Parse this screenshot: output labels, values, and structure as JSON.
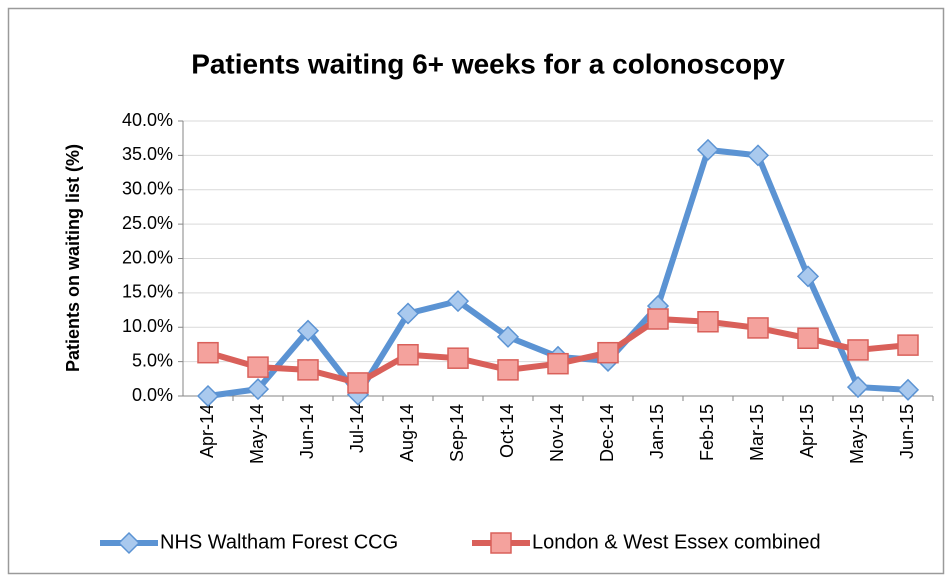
{
  "chart_data": {
    "type": "line",
    "title": "Patients waiting 6+ weeks for a colonoscopy",
    "y_label": "Patients on waiting list (%)",
    "categories": [
      "Apr-14",
      "May-14",
      "Jun-14",
      "Jul-14",
      "Aug-14",
      "Sep-14",
      "Oct-14",
      "Nov-14",
      "Dec-14",
      "Jan-15",
      "Feb-15",
      "Mar-15",
      "Apr-15",
      "May-15",
      "Jun-15"
    ],
    "series": [
      {
        "name": "NHS Waltham Forest CCG",
        "color": "#5b93d3",
        "marker": "diamond",
        "values": [
          0.0,
          1.0,
          9.5,
          0.2,
          12.0,
          13.8,
          8.6,
          5.7,
          5.1,
          13.1,
          35.8,
          35.0,
          17.4,
          1.3,
          0.9
        ]
      },
      {
        "name": "London & West Essex combined",
        "color": "#d9605a",
        "marker": "square",
        "values": [
          6.3,
          4.2,
          3.8,
          1.9,
          6.0,
          5.5,
          3.8,
          4.7,
          6.3,
          11.2,
          10.8,
          9.9,
          8.4,
          6.7,
          7.4
        ]
      }
    ],
    "ylim": [
      0,
      40
    ],
    "yticks": [
      {
        "value": 0,
        "label": "0.0%"
      },
      {
        "value": 5,
        "label": "5.0%"
      },
      {
        "value": 10,
        "label": "10.0%"
      },
      {
        "value": 15,
        "label": "15.0%"
      },
      {
        "value": 20,
        "label": "20.0%"
      },
      {
        "value": 25,
        "label": "25.0%"
      },
      {
        "value": 30,
        "label": "30.0%"
      },
      {
        "value": 35,
        "label": "35.0%"
      },
      {
        "value": 40,
        "label": "40.0%"
      }
    ],
    "grid": true,
    "legend": "bottom"
  }
}
